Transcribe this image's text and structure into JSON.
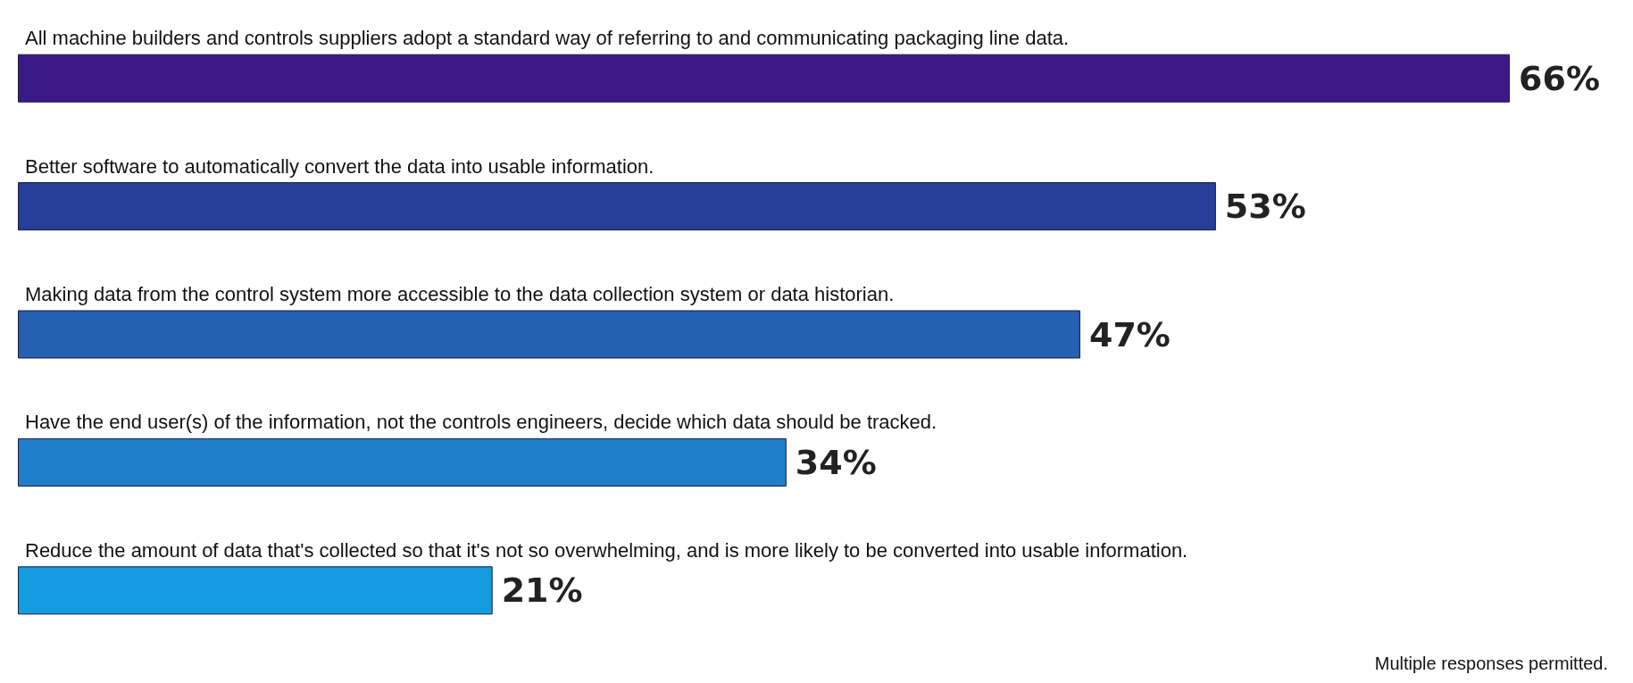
{
  "chart_data": {
    "type": "bar",
    "orientation": "horizontal",
    "categories": [
      "All machine builders and controls suppliers adopt a standard way of referring to and communicating packaging line data.",
      "Better software to automatically convert the data into usable information.",
      "Making data from the control system more accessible to the data collection system or data historian.",
      "Have the end user(s) of the information, not the controls engineers, decide which data should be tracked.",
      "Reduce the amount of data that's collected so that it's not so overwhelming, and is more likely to be converted into usable information."
    ],
    "values": [
      66,
      53,
      47,
      34,
      21
    ],
    "colors": [
      "#3b1a87",
      "#263f98",
      "#2660b0",
      "#1f7fc8",
      "#139de0"
    ],
    "value_labels": [
      "66%",
      "53%",
      "47%",
      "34%",
      "21%"
    ],
    "annotations": [
      "Multiple responses permitted."
    ]
  }
}
